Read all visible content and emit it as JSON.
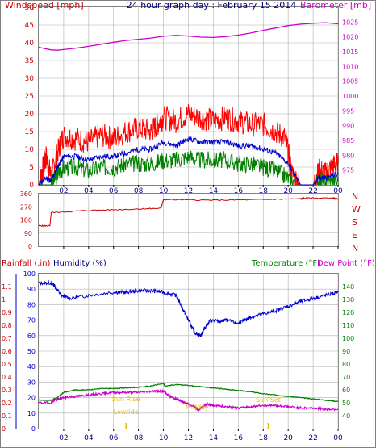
{
  "header": {
    "left_title": "Windspeed [mph]",
    "title": "24 hour graph day : February 15 2014",
    "right_title": "Barometer [mb]"
  },
  "colors": {
    "wind": "#ff0000",
    "wind_avg": "#0000cc",
    "wind_low": "#008000",
    "barometer": "#cc00cc",
    "direction": "#cc0000",
    "humidity": "#0000cc",
    "temperature": "#008000",
    "dewpoint": "#cc00cc",
    "rain": "#cc0000",
    "sun_label": "#e6c000",
    "grid": "#b0b0b0"
  },
  "chart_data": [
    {
      "type": "line",
      "name": "wind-barometer-panel",
      "xlabel": "",
      "x_ticks": [
        "02",
        "04",
        "06",
        "08",
        "10",
        "12",
        "14",
        "16",
        "18",
        "20",
        "22",
        "00"
      ],
      "xlim": [
        0,
        24
      ],
      "ylabel": "Windspeed [mph]",
      "ylim": [
        0,
        50
      ],
      "y_ticks": [
        0,
        5,
        10,
        15,
        20,
        25,
        30,
        35,
        40,
        45,
        50
      ],
      "y2label": "Barometer [mb]",
      "y2lim": [
        970,
        1030
      ],
      "y2_ticks": [
        975,
        980,
        985,
        990,
        995,
        1000,
        1005,
        1010,
        1015,
        1020,
        1025
      ],
      "grid": true,
      "series": [
        {
          "axis": "y2",
          "x": [
            0,
            0.5,
            1.0,
            1.5,
            2.0,
            3.0,
            4.0,
            5.0,
            6.0,
            7.0,
            8.0,
            9.0,
            10.0,
            11.0,
            12.0,
            13.0,
            14.0,
            15.0,
            16.0,
            17.0,
            18.0,
            19.0,
            20.0,
            21.0,
            22.0,
            23.0,
            24.0
          ],
          "values": [
            1016.5,
            1016.0,
            1015.6,
            1015.5,
            1015.7,
            1016.2,
            1016.8,
            1017.5,
            1018.2,
            1018.8,
            1019.2,
            1019.6,
            1020.2,
            1020.5,
            1020.3,
            1019.9,
            1019.8,
            1020.1,
            1020.6,
            1021.3,
            1022.2,
            1023.0,
            1023.8,
            1024.3,
            1024.6,
            1024.8,
            1024.4
          ]
        },
        {
          "axis": "y",
          "x": [
            0,
            0.3,
            0.6,
            1.0,
            1.5,
            2.0,
            3.0,
            4.0,
            5.0,
            6.0,
            7.0,
            8.0,
            9.0,
            9.5,
            10.0,
            11.0,
            12.0,
            13.0,
            14.0,
            15.0,
            16.0,
            17.0,
            18.0,
            19.0,
            19.8,
            20.3,
            21.0,
            22.0,
            22.5,
            23.0,
            23.5,
            24.0
          ],
          "values": [
            0,
            4,
            8,
            2,
            9,
            14,
            13,
            12,
            14,
            13,
            15,
            16,
            15,
            17,
            19,
            18,
            20,
            19,
            18,
            19,
            18,
            17,
            17,
            15,
            13,
            3,
            0,
            0,
            4,
            3,
            5,
            6
          ]
        },
        {
          "axis": "y",
          "x": [
            0,
            0.6,
            1.0,
            1.5,
            2.0,
            3.0,
            4.0,
            5.0,
            6.0,
            7.0,
            8.0,
            9.0,
            10.0,
            11.0,
            12.0,
            13.0,
            14.0,
            15.0,
            16.0,
            17.0,
            18.0,
            19.0,
            20.0,
            21.0,
            22.0,
            22.5,
            23.0,
            24.0
          ],
          "values": [
            0,
            2,
            1,
            5,
            8,
            8,
            7,
            8,
            8,
            9,
            10,
            10,
            12,
            11,
            13,
            12,
            12,
            12,
            11,
            11,
            10,
            9,
            6,
            0,
            0,
            2,
            2,
            3
          ]
        },
        {
          "axis": "y",
          "x": [
            0,
            1.0,
            1.5,
            2.0,
            3.0,
            4.0,
            5.0,
            6.0,
            7.0,
            8.0,
            9.0,
            10.0,
            11.0,
            12.0,
            13.0,
            14.0,
            15.0,
            16.0,
            17.0,
            18.0,
            19.0,
            20.0,
            21.0,
            22.0,
            22.5,
            23.0,
            24.0
          ],
          "values": [
            0,
            0,
            3,
            5,
            5,
            4,
            5,
            5,
            6,
            6,
            6,
            7,
            7,
            8,
            7,
            7,
            7,
            6,
            6,
            5,
            4,
            2,
            0,
            0,
            1,
            1,
            1
          ]
        }
      ]
    },
    {
      "type": "line",
      "name": "wind-direction-panel",
      "xlabel": "",
      "xlim": [
        0,
        24
      ],
      "ylim": [
        0,
        360
      ],
      "y_ticks": [
        0,
        90,
        180,
        270,
        360
      ],
      "compass_labels": [
        "N",
        "W",
        "S",
        "E",
        "N"
      ],
      "grid": true,
      "series": [
        {
          "x": [
            0,
            0.9,
            1.0,
            4.0,
            8.0,
            9.8,
            10.0,
            14.0,
            18.0,
            21.0,
            21.3,
            23.5,
            24.0
          ],
          "values": [
            140,
            140,
            230,
            245,
            255,
            260,
            320,
            315,
            320,
            325,
            330,
            330,
            325
          ]
        }
      ]
    },
    {
      "type": "line",
      "name": "humidity-temperature-panel",
      "xlabel": "",
      "xlim": [
        0,
        24
      ],
      "ylabel": "Humidity (%)",
      "ylim": [
        0,
        100
      ],
      "y_ticks": [
        0,
        10,
        20,
        30,
        40,
        50,
        60,
        70,
        80,
        90,
        100
      ],
      "y_rain_label": "Rainfall (.in)",
      "y_rain_ticks": [
        "0",
        "0.1",
        "0.2",
        "0.3",
        "0.4",
        "0.5",
        "0.6",
        "0.7",
        "0.8",
        "0.9",
        "1",
        "1.1"
      ],
      "y_rain_lim": [
        0,
        1.2
      ],
      "y2label": "Temperature (°F)",
      "y3label": "Dew Point (°F)",
      "y2lim": [
        30,
        150
      ],
      "y2_ticks": [
        40,
        50,
        60,
        70,
        80,
        90,
        100,
        110,
        120,
        130,
        140
      ],
      "annotations": [
        {
          "text": "Sun Rise",
          "x": 7.0
        },
        {
          "text": "Lowtide",
          "x": 7.0
        },
        {
          "text": "Midday",
          "x": 12.7
        },
        {
          "text": "Sun Set",
          "x": 18.4
        }
      ],
      "grid": true,
      "series": [
        {
          "axis": "y",
          "x": [
            0,
            1.0,
            1.3,
            1.8,
            2.5,
            4.0,
            6.0,
            7.0,
            8.0,
            9.0,
            10.0,
            11.0,
            11.7,
            12.0,
            12.5,
            13.0,
            13.3,
            13.8,
            14.5,
            15.0,
            16.0,
            16.5,
            17.0,
            18.0,
            19.0,
            20.0,
            21.0,
            22.0,
            23.0,
            24.0
          ],
          "values": [
            94,
            94,
            92,
            86,
            84,
            86,
            88,
            88,
            89,
            89,
            88,
            86,
            75,
            70,
            62,
            60,
            65,
            70,
            69,
            70,
            68,
            70,
            72,
            74,
            76,
            79,
            82,
            84,
            86,
            88
          ]
        },
        {
          "axis": "y2",
          "x": [
            0,
            1.0,
            1.5,
            2.0,
            3.0,
            4.0,
            5.0,
            6.0,
            7.0,
            8.0,
            9.0,
            10.0,
            10.1,
            11.0,
            12.0,
            13.0,
            14.0,
            15.0,
            16.0,
            17.0,
            18.0,
            19.0,
            20.0,
            21.0,
            22.0,
            23.0,
            24.0
          ],
          "values": [
            52,
            52,
            54,
            58,
            60,
            60,
            61,
            61,
            61.5,
            62,
            63,
            65,
            63,
            64,
            63.5,
            62.5,
            61.5,
            60.5,
            59.5,
            58.5,
            57,
            56,
            55,
            54,
            53,
            52,
            51
          ]
        },
        {
          "axis": "y2",
          "x": [
            0,
            1.0,
            1.3,
            2.0,
            3.0,
            4.0,
            5.0,
            6.0,
            7.0,
            8.0,
            9.0,
            10.0,
            10.5,
            11.0,
            11.5,
            12.0,
            12.5,
            12.8,
            13.0,
            13.5,
            14.0,
            15.0,
            16.0,
            17.0,
            18.0,
            19.0,
            20.0,
            21.0,
            22.0,
            23.0,
            24.0
          ],
          "values": [
            50,
            50,
            52,
            54,
            55,
            56,
            57,
            58,
            58,
            58,
            59,
            59,
            55,
            53,
            51,
            49,
            47,
            44,
            46,
            49,
            48,
            47,
            46,
            47,
            48,
            48,
            47,
            46,
            46,
            45,
            45
          ]
        }
      ]
    }
  ]
}
